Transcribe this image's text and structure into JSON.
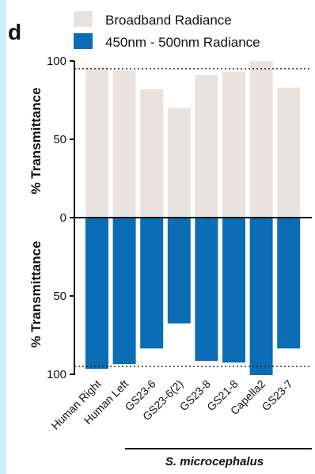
{
  "chart_data": {
    "type": "bar",
    "panel_label": "d",
    "categories": [
      "Human Right",
      "Human Left",
      "GS23-6",
      "GS23-6(2)",
      "GS23-8",
      "GS21-8",
      "Capella2",
      "GS23-7"
    ],
    "series": [
      {
        "name": "Broadband Radiance",
        "values": [
          96,
          94,
          82,
          70,
          91,
          93,
          100,
          83
        ],
        "color": "#e8e3df",
        "direction": "up"
      },
      {
        "name": "450nm - 500nm Radiance",
        "values": [
          96,
          93,
          83,
          67,
          91,
          92,
          100,
          83
        ],
        "color": "#0a6db5",
        "direction": "down"
      }
    ],
    "ylabel_top": "% Transmittance",
    "ylabel_bottom": "% Transmittance",
    "ylim": [
      0,
      100
    ],
    "yticks_top": [
      "100",
      "50",
      "0"
    ],
    "yticks_bottom": [
      "50",
      "100"
    ],
    "reference_line": 95,
    "group_label": "S. microcephalus",
    "grid": false,
    "legend_position": "top"
  }
}
